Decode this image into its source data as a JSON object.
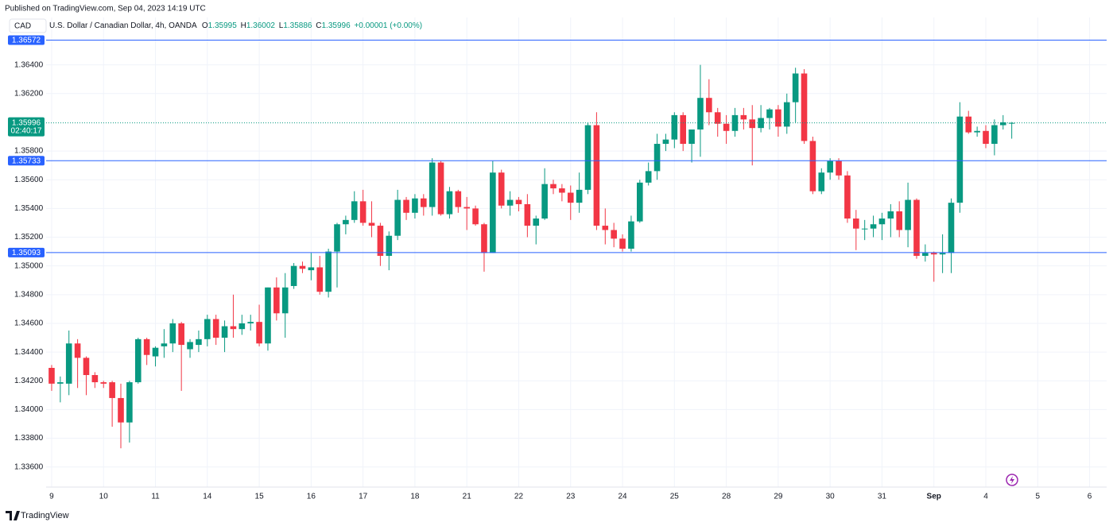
{
  "publisher": "Published on TradingView.com, Sep 04, 2023 14:19 UTC",
  "currency_button": "CAD",
  "footer_brand": "TradingView",
  "chart_data": {
    "type": "candlestick",
    "title": "U.S. Dollar / Canadian Dollar, 4h, OANDA",
    "ohlc_legend": [
      {
        "label": "O",
        "value": 1.35995
      },
      {
        "label": "H",
        "value": 1.36002
      },
      {
        "label": "L",
        "value": 1.35886
      },
      {
        "label": "C",
        "value": 1.35996
      }
    ],
    "change": "+0.00001 (+0.00%)",
    "up_color": "#089981",
    "down_color": "#f23645",
    "open": [
      1.3429,
      1.3418,
      1.3418,
      1.3446,
      1.3436,
      1.3424,
      1.3419,
      1.3419,
      1.3408,
      1.3391,
      1.3419,
      1.3449,
      1.3437,
      1.3444,
      1.3446,
      1.346,
      1.3442,
      1.3445,
      1.3449,
      1.3463,
      1.345,
      1.3458,
      1.3456,
      1.346,
      1.3461,
      1.3446,
      1.3485,
      1.3467,
      1.3486,
      1.35,
      1.3497,
      1.3499,
      1.3482,
      1.351,
      1.3529,
      1.3532,
      1.3545,
      1.353,
      1.3528,
      1.3507,
      1.3521,
      1.3546,
      1.3537,
      1.3547,
      1.3541,
      1.3572,
      1.3536,
      1.3552,
      1.3541,
      1.354,
      1.3529,
      1.3509,
      1.3565,
      1.3542,
      1.3546,
      1.3543,
      1.3528,
      1.3533,
      1.3557,
      1.3554,
      1.3551,
      1.3544,
      1.3553,
      1.3598,
      1.3528,
      1.3525,
      1.3519,
      1.3512,
      1.3531,
      1.3558,
      1.3566,
      1.3585,
      1.3588,
      1.3605,
      1.3585,
      1.3595,
      1.3617,
      1.3607,
      1.3599,
      1.3594,
      1.3605,
      1.3602,
      1.3596,
      1.3603,
      1.3609,
      1.3597,
      1.3614,
      1.3634,
      1.3587,
      1.3552,
      1.3565,
      1.3573,
      1.3563,
      1.3533,
      1.3526,
      1.3526,
      1.3529,
      1.3533,
      1.3538,
      1.3525,
      1.3546,
      1.3507,
      1.3509,
      1.3508,
      1.3509,
      1.3544,
      1.3604,
      1.3593,
      1.3594,
      1.3585,
      1.3598,
      1.35995
    ],
    "high": [
      1.3431,
      1.3423,
      1.3455,
      1.3449,
      1.3437,
      1.3426,
      1.342,
      1.342,
      1.3418,
      1.342,
      1.345,
      1.345,
      1.3444,
      1.3456,
      1.3463,
      1.3461,
      1.3449,
      1.3455,
      1.3466,
      1.3466,
      1.3462,
      1.348,
      1.3466,
      1.3466,
      1.3473,
      1.3485,
      1.3492,
      1.3495,
      1.3502,
      1.3503,
      1.3509,
      1.3507,
      1.3512,
      1.353,
      1.3535,
      1.3552,
      1.3553,
      1.3545,
      1.353,
      1.3524,
      1.3553,
      1.3548,
      1.355,
      1.355,
      1.3575,
      1.3573,
      1.3555,
      1.3553,
      1.3548,
      1.3542,
      1.353,
      1.3573,
      1.3567,
      1.3552,
      1.3548,
      1.355,
      1.3535,
      1.3568,
      1.356,
      1.3557,
      1.3556,
      1.3565,
      1.36,
      1.3607,
      1.354,
      1.353,
      1.3522,
      1.3535,
      1.356,
      1.3572,
      1.3592,
      1.3592,
      1.3607,
      1.3607,
      1.3592,
      1.364,
      1.363,
      1.361,
      1.3605,
      1.361,
      1.361,
      1.3612,
      1.3612,
      1.361,
      1.3612,
      1.362,
      1.3638,
      1.3637,
      1.359,
      1.3568,
      1.3575,
      1.3575,
      1.3566,
      1.3539,
      1.3532,
      1.3535,
      1.3537,
      1.3543,
      1.3545,
      1.3558,
      1.3547,
      1.3515,
      1.351,
      1.3522,
      1.3547,
      1.3614,
      1.3608,
      1.3597,
      1.3598,
      1.3602,
      1.3605,
      1.36002
    ],
    "low": [
      1.3413,
      1.3405,
      1.341,
      1.3415,
      1.341,
      1.3415,
      1.3415,
      1.3388,
      1.3373,
      1.3377,
      1.3418,
      1.3431,
      1.343,
      1.3436,
      1.344,
      1.3413,
      1.3436,
      1.344,
      1.3444,
      1.3445,
      1.344,
      1.345,
      1.3452,
      1.3455,
      1.3444,
      1.3441,
      1.3462,
      1.345,
      1.3484,
      1.3495,
      1.349,
      1.348,
      1.3478,
      1.3485,
      1.3522,
      1.353,
      1.3528,
      1.352,
      1.35,
      1.3497,
      1.3518,
      1.3532,
      1.3533,
      1.3535,
      1.3535,
      1.3535,
      1.3533,
      1.3537,
      1.3525,
      1.3528,
      1.3496,
      1.3509,
      1.354,
      1.3535,
      1.3538,
      1.352,
      1.3515,
      1.3532,
      1.355,
      1.3545,
      1.3532,
      1.3537,
      1.355,
      1.3525,
      1.3515,
      1.3513,
      1.351,
      1.351,
      1.353,
      1.3556,
      1.356,
      1.358,
      1.3582,
      1.358,
      1.3572,
      1.3576,
      1.3598,
      1.359,
      1.3585,
      1.359,
      1.3595,
      1.357,
      1.3593,
      1.3595,
      1.359,
      1.3592,
      1.36,
      1.3585,
      1.355,
      1.355,
      1.356,
      1.356,
      1.353,
      1.3511,
      1.3518,
      1.352,
      1.3518,
      1.352,
      1.352,
      1.3513,
      1.3505,
      1.3503,
      1.3489,
      1.3495,
      1.3495,
      1.3537,
      1.3592,
      1.359,
      1.3582,
      1.3577,
      1.3595,
      1.35886
    ],
    "close": [
      1.3418,
      1.3419,
      1.3446,
      1.3436,
      1.3424,
      1.3419,
      1.3418,
      1.3408,
      1.3391,
      1.3419,
      1.3449,
      1.3438,
      1.3443,
      1.3446,
      1.346,
      1.3445,
      1.3447,
      1.3449,
      1.3463,
      1.345,
      1.3458,
      1.3456,
      1.346,
      1.3461,
      1.3446,
      1.3485,
      1.3467,
      1.3485,
      1.35,
      1.3498,
      1.3499,
      1.3482,
      1.351,
      1.3529,
      1.3532,
      1.3545,
      1.353,
      1.3528,
      1.3507,
      1.3521,
      1.3546,
      1.3537,
      1.3547,
      1.3541,
      1.3572,
      1.3536,
      1.3552,
      1.3541,
      1.354,
      1.3529,
      1.3509,
      1.3565,
      1.3542,
      1.3546,
      1.3543,
      1.3528,
      1.3533,
      1.3557,
      1.3554,
      1.3551,
      1.3544,
      1.3553,
      1.3598,
      1.3528,
      1.3525,
      1.3519,
      1.3512,
      1.3531,
      1.3558,
      1.3566,
      1.3585,
      1.3588,
      1.3605,
      1.3585,
      1.3595,
      1.3617,
      1.3607,
      1.3599,
      1.3594,
      1.3605,
      1.3602,
      1.3596,
      1.3603,
      1.3609,
      1.3597,
      1.3614,
      1.3634,
      1.3587,
      1.3552,
      1.3565,
      1.3573,
      1.3563,
      1.3533,
      1.3526,
      1.3526,
      1.3529,
      1.3533,
      1.3538,
      1.3525,
      1.3546,
      1.3507,
      1.3509,
      1.3508,
      1.3509,
      1.3544,
      1.3604,
      1.3593,
      1.3594,
      1.3585,
      1.3598,
      1.36,
      1.35996
    ],
    "xlim": [
      -0.64,
      121.97
    ],
    "xticks": [
      {
        "value": 0,
        "label": "9"
      },
      {
        "value": 6,
        "label": "10"
      },
      {
        "value": 12,
        "label": "11"
      },
      {
        "value": 18,
        "label": "14"
      },
      {
        "value": 24,
        "label": "15"
      },
      {
        "value": 30,
        "label": "16"
      },
      {
        "value": 36,
        "label": "17"
      },
      {
        "value": 42,
        "label": "18"
      },
      {
        "value": 48,
        "label": "21"
      },
      {
        "value": 54,
        "label": "22"
      },
      {
        "value": 60,
        "label": "23"
      },
      {
        "value": 66,
        "label": "24"
      },
      {
        "value": 72,
        "label": "25"
      },
      {
        "value": 78,
        "label": "28"
      },
      {
        "value": 84,
        "label": "29"
      },
      {
        "value": 90,
        "label": "30"
      },
      {
        "value": 96,
        "label": "31"
      },
      {
        "value": 102,
        "label": "Sep"
      },
      {
        "value": 108,
        "label": "4"
      },
      {
        "value": 114,
        "label": "5"
      },
      {
        "value": 120,
        "label": "6"
      }
    ],
    "ylim": [
      1.3346,
      1.3673
    ],
    "yticks": [
      {
        "value": 1.336,
        "label": "1.33600"
      },
      {
        "value": 1.338,
        "label": "1.33800"
      },
      {
        "value": 1.34,
        "label": "1.34000"
      },
      {
        "value": 1.342,
        "label": "1.34200"
      },
      {
        "value": 1.344,
        "label": "1.34400"
      },
      {
        "value": 1.346,
        "label": "1.34600"
      },
      {
        "value": 1.348,
        "label": "1.34800"
      },
      {
        "value": 1.35,
        "label": "1.35000"
      },
      {
        "value": 1.352,
        "label": "1.35200"
      },
      {
        "value": 1.354,
        "label": "1.35400"
      },
      {
        "value": 1.356,
        "label": "1.35600"
      },
      {
        "value": 1.358,
        "label": "1.35800"
      },
      {
        "value": 1.362,
        "label": "1.36200"
      },
      {
        "value": 1.364,
        "label": "1.36400"
      }
    ],
    "grid": true,
    "levels": [
      1.36572,
      1.35733,
      1.35093
    ],
    "level_color": "#2962ff",
    "last_price": 1.35996,
    "countdown": "02:40:17"
  }
}
